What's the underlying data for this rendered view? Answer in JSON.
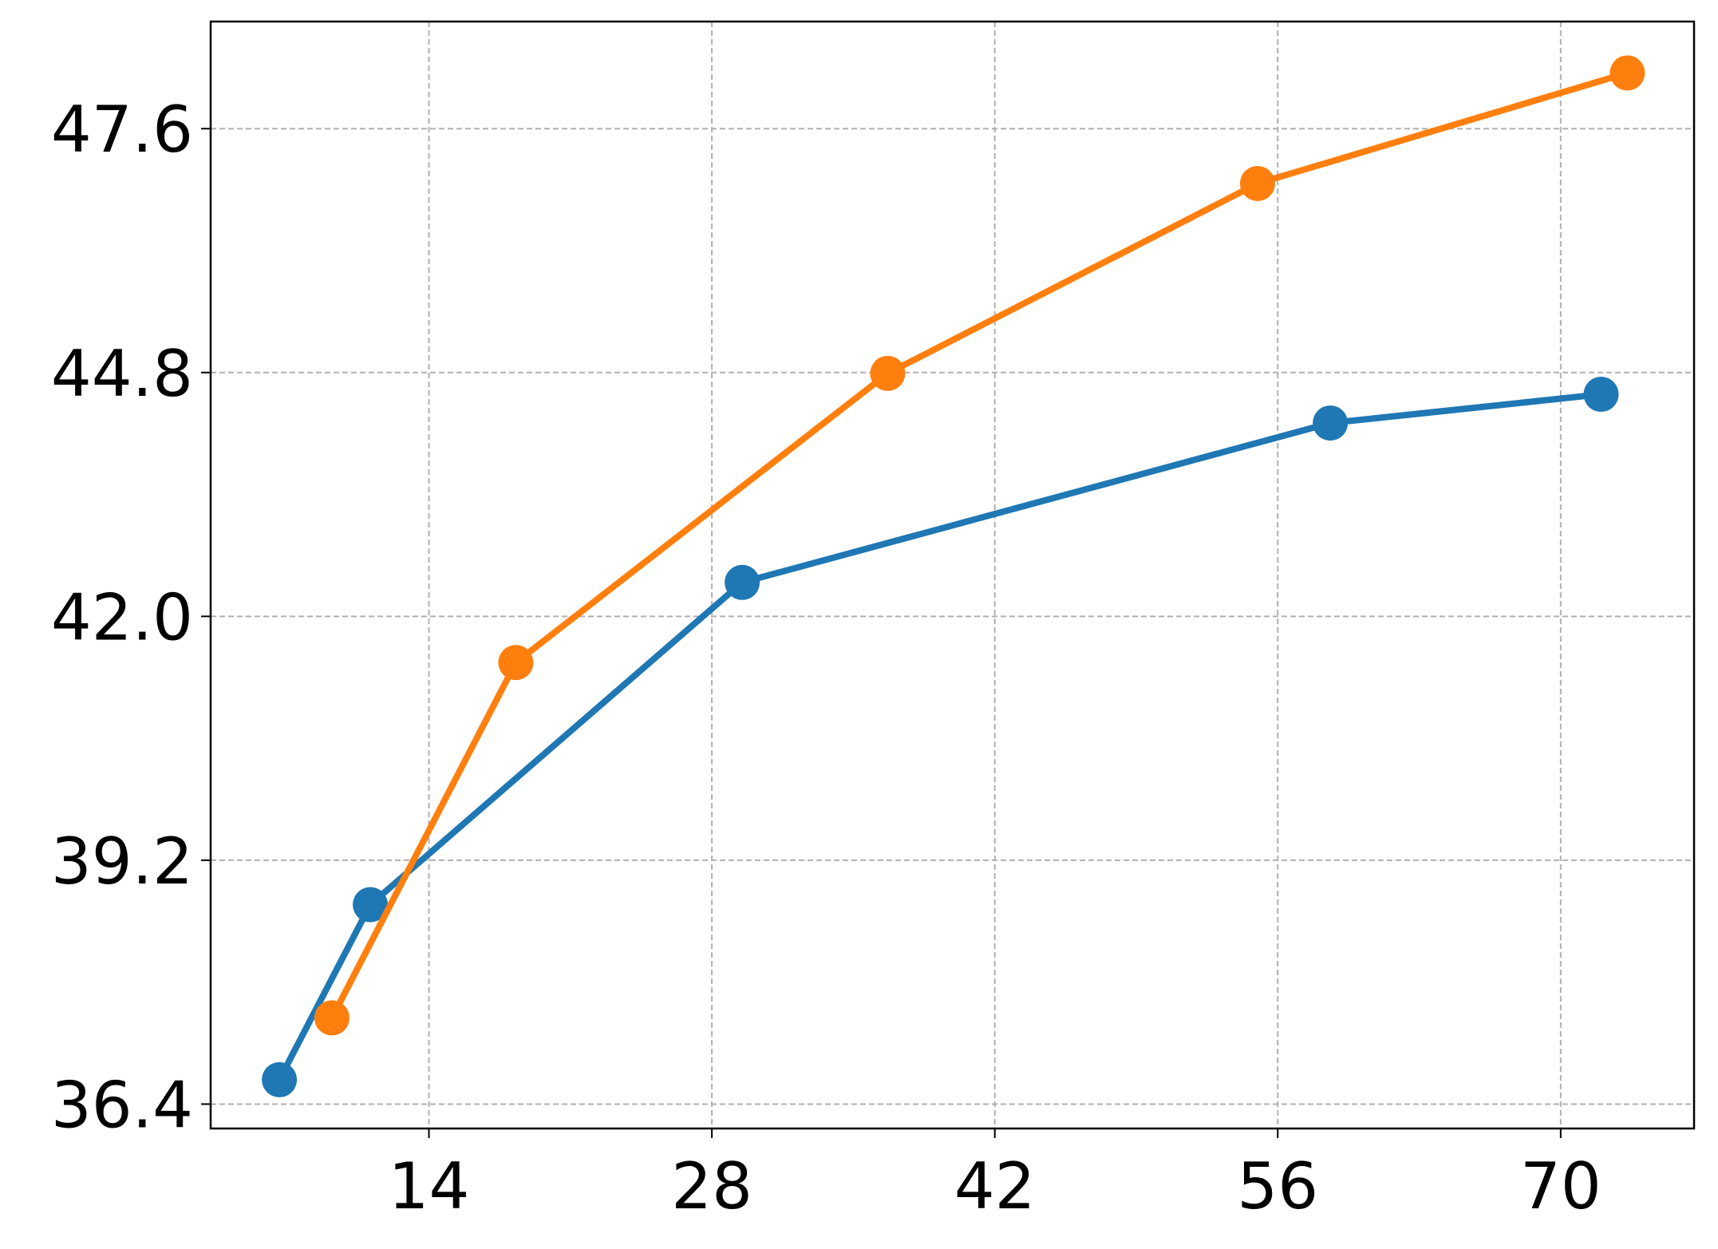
{
  "chart_data": {
    "type": "line",
    "xlim": [
      3.2,
      76.6
    ],
    "xticks": [
      14,
      28,
      42,
      56,
      70
    ],
    "ylim": [
      36.12,
      48.83
    ],
    "yticks": [
      {
        "value": 36.4,
        "label": "36.4"
      },
      {
        "value": 39.2,
        "label": "39.2"
      },
      {
        "value": 42.0,
        "label": "42.0"
      },
      {
        "value": 44.8,
        "label": "44.8"
      },
      {
        "value": 47.6,
        "label": "47.6"
      }
    ],
    "grid": true,
    "series": [
      {
        "color": "#1f77b4",
        "x": [
          6.6,
          11.1,
          29.5,
          58.6,
          72.0
        ],
        "values": [
          36.68,
          38.69,
          42.39,
          44.22,
          44.55
        ]
      },
      {
        "color": "#ff7f0e",
        "x": [
          9.2,
          18.3,
          36.7,
          55.0,
          73.3
        ],
        "values": [
          37.39,
          41.47,
          44.79,
          46.97,
          48.24
        ]
      }
    ]
  }
}
